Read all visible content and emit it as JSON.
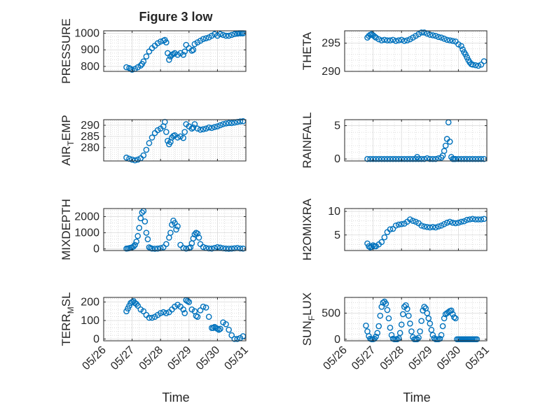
{
  "figure": {
    "title": "Figure 3 low",
    "xlabel": "Time"
  },
  "colors": {
    "marker": "#0072BD",
    "axis": "#262626",
    "grid": "#c9c9c9",
    "background": "#ffffff"
  },
  "chart_data": [
    {
      "id": "pressure",
      "type": "scatter",
      "ylabel": "PRESSURE",
      "ylabel_sub": "",
      "ylim": [
        770,
        1015
      ],
      "yticks": [
        800,
        900,
        1000
      ],
      "xlim": [
        0,
        5
      ],
      "xticks": [
        0,
        1,
        2,
        3,
        4,
        5
      ],
      "xticklabels": [],
      "grid": true,
      "x": [
        0.8,
        0.9,
        0.95,
        1.0,
        1.1,
        1.2,
        1.3,
        1.35,
        1.4,
        1.5,
        1.6,
        1.7,
        1.8,
        1.9,
        2.0,
        2.1,
        2.15,
        2.2,
        2.25,
        2.3,
        2.35,
        2.4,
        2.45,
        2.5,
        2.6,
        2.7,
        2.8,
        2.85,
        2.9,
        3.0,
        3.1,
        3.15,
        3.2,
        3.3,
        3.4,
        3.5,
        3.6,
        3.7,
        3.8,
        3.9,
        4.0,
        4.1,
        4.2,
        4.3,
        4.4,
        4.5,
        4.6,
        4.7,
        4.75,
        4.8,
        4.85,
        4.9
      ],
      "y": [
        795,
        790,
        785,
        780,
        785,
        795,
        805,
        815,
        830,
        860,
        890,
        910,
        925,
        940,
        950,
        955,
        960,
        945,
        880,
        840,
        860,
        870,
        875,
        880,
        870,
        880,
        870,
        890,
        930,
        910,
        895,
        900,
        935,
        945,
        955,
        965,
        970,
        975,
        985,
        995,
        985,
        995,
        990,
        985,
        985,
        990,
        995,
        998,
        1000,
        1000,
        1000,
        1000
      ]
    },
    {
      "id": "theta",
      "type": "scatter",
      "ylabel": "THETA",
      "ylabel_sub": "",
      "ylim": [
        290,
        297.2
      ],
      "yticks": [
        290,
        295
      ],
      "xlim": [
        0,
        5
      ],
      "xticks": [
        0,
        1,
        2,
        3,
        4,
        5
      ],
      "xticklabels": [],
      "grid": true,
      "x": [
        0.8,
        0.85,
        0.9,
        0.95,
        1.0,
        1.05,
        1.1,
        1.2,
        1.3,
        1.4,
        1.5,
        1.6,
        1.7,
        1.8,
        1.9,
        2.0,
        2.1,
        2.2,
        2.3,
        2.4,
        2.5,
        2.6,
        2.7,
        2.8,
        2.9,
        3.0,
        3.1,
        3.2,
        3.3,
        3.4,
        3.5,
        3.6,
        3.7,
        3.8,
        3.9,
        4.0,
        4.1,
        4.15,
        4.2,
        4.25,
        4.3,
        4.35,
        4.4,
        4.45,
        4.5,
        4.6,
        4.7,
        4.8,
        4.9
      ],
      "y": [
        296,
        296.3,
        296.5,
        296.6,
        296.4,
        296.2,
        296.0,
        295.7,
        295.5,
        295.6,
        295.5,
        295.5,
        295.6,
        295.4,
        295.5,
        295.6,
        295.4,
        295.5,
        295.7,
        296.0,
        296.3,
        296.6,
        296.9,
        296.9,
        296.7,
        296.5,
        296.4,
        296.3,
        296.1,
        296.0,
        295.8,
        295.6,
        295.5,
        295.4,
        295.3,
        294.8,
        294.5,
        293.9,
        293.4,
        293.0,
        292.5,
        292.0,
        291.6,
        291.3,
        291.2,
        291.1,
        291.0,
        291.2,
        291.8
      ]
    },
    {
      "id": "air_temp",
      "type": "scatter",
      "ylabel": "AIR",
      "ylabel_sub": "T",
      "ylabel_tail": "EMP",
      "ylim": [
        274,
        292.5
      ],
      "yticks": [
        280,
        285,
        290
      ],
      "xlim": [
        0,
        5
      ],
      "xticks": [
        0,
        1,
        2,
        3,
        4,
        5
      ],
      "xticklabels": [],
      "grid": true,
      "x": [
        0.8,
        0.9,
        1.0,
        1.1,
        1.2,
        1.3,
        1.4,
        1.5,
        1.6,
        1.7,
        1.8,
        1.9,
        2.0,
        2.1,
        2.15,
        2.2,
        2.25,
        2.3,
        2.35,
        2.4,
        2.45,
        2.5,
        2.6,
        2.7,
        2.8,
        2.85,
        2.9,
        3.0,
        3.1,
        3.15,
        3.2,
        3.3,
        3.4,
        3.5,
        3.6,
        3.7,
        3.8,
        3.9,
        4.0,
        4.1,
        4.2,
        4.3,
        4.4,
        4.5,
        4.6,
        4.7,
        4.8,
        4.9
      ],
      "y": [
        275.5,
        275,
        274.6,
        274.3,
        274.6,
        275.2,
        276.5,
        279,
        282,
        284.5,
        286.5,
        287.8,
        288.5,
        289.5,
        291.5,
        287,
        283,
        281.5,
        282.5,
        284.5,
        285.2,
        285.5,
        284.5,
        285,
        284.3,
        287,
        290.5,
        289.5,
        288.5,
        289,
        290.5,
        288.5,
        288,
        288.2,
        288.5,
        289,
        288.8,
        289.2,
        289.5,
        290,
        290.5,
        290.8,
        291,
        291,
        291.2,
        291.5,
        291.7,
        291.8
      ]
    },
    {
      "id": "rainfall",
      "type": "scatter",
      "ylabel": "RAINFALL",
      "ylabel_sub": "",
      "ylim": [
        -0.3,
        5.9
      ],
      "yticks": [
        0,
        5
      ],
      "xlim": [
        0,
        5
      ],
      "xticks": [
        0,
        1,
        2,
        3,
        4,
        5
      ],
      "xticklabels": [],
      "grid": true,
      "x": [
        0.8,
        0.9,
        1.0,
        1.1,
        1.2,
        1.3,
        1.4,
        1.5,
        1.6,
        1.7,
        1.8,
        1.9,
        2.0,
        2.1,
        2.2,
        2.3,
        2.4,
        2.5,
        2.55,
        2.6,
        2.7,
        2.8,
        2.9,
        3.0,
        3.1,
        3.2,
        3.3,
        3.4,
        3.45,
        3.5,
        3.55,
        3.6,
        3.65,
        3.7,
        3.75,
        3.8,
        3.85,
        3.9,
        4.0,
        4.1,
        4.2,
        4.3,
        4.4,
        4.5,
        4.6,
        4.7,
        4.8,
        4.9
      ],
      "y": [
        0,
        0,
        0,
        0,
        0,
        0,
        0,
        0,
        0,
        0,
        0,
        0,
        0,
        0,
        0,
        0,
        0,
        0,
        0.3,
        0,
        0,
        0,
        0.1,
        0,
        0,
        0,
        0.1,
        0.2,
        0.5,
        1.2,
        2,
        3,
        5.5,
        2.6,
        0.3,
        0,
        0,
        0,
        0,
        0,
        0,
        0,
        0,
        0,
        0,
        0,
        0,
        0
      ]
    },
    {
      "id": "mixdepth",
      "type": "scatter",
      "ylabel": "MIXDEPTH",
      "ylabel_sub": "",
      "ylim": [
        -100,
        2500
      ],
      "yticks": [
        0,
        1000,
        2000
      ],
      "xlim": [
        0,
        5
      ],
      "xticks": [
        0,
        1,
        2,
        3,
        4,
        5
      ],
      "xticklabels": [],
      "grid": true,
      "x": [
        0.8,
        0.85,
        0.9,
        0.95,
        1.0,
        1.05,
        1.1,
        1.15,
        1.2,
        1.25,
        1.3,
        1.35,
        1.4,
        1.45,
        1.5,
        1.55,
        1.6,
        1.65,
        1.7,
        1.8,
        1.9,
        2.0,
        2.1,
        2.2,
        2.3,
        2.35,
        2.4,
        2.45,
        2.5,
        2.55,
        2.6,
        2.7,
        2.8,
        2.9,
        3.0,
        3.05,
        3.1,
        3.15,
        3.2,
        3.25,
        3.3,
        3.35,
        3.4,
        3.5,
        3.6,
        3.7,
        3.8,
        3.9,
        4.0,
        4.1,
        4.2,
        4.3,
        4.4,
        4.5,
        4.6,
        4.7,
        4.8,
        4.9
      ],
      "y": [
        20,
        30,
        50,
        70,
        100,
        150,
        250,
        450,
        800,
        1300,
        1900,
        2250,
        2350,
        1700,
        1000,
        600,
        100,
        50,
        20,
        10,
        20,
        50,
        100,
        300,
        700,
        1000,
        1500,
        1750,
        1600,
        1200,
        1400,
        250,
        60,
        20,
        50,
        100,
        350,
        650,
        900,
        1000,
        950,
        700,
        300,
        120,
        60,
        30,
        20,
        60,
        110,
        80,
        40,
        20,
        10,
        20,
        40,
        60,
        30,
        20
      ]
    },
    {
      "id": "h2omixra",
      "type": "scatter",
      "ylabel": "H2OMIXRA",
      "ylabel_sub": "",
      "ylim": [
        1.7,
        10.6
      ],
      "yticks": [
        5,
        10
      ],
      "xlim": [
        0,
        5
      ],
      "xticks": [
        0,
        1,
        2,
        3,
        4,
        5
      ],
      "xticklabels": [],
      "grid": true,
      "x": [
        0.8,
        0.85,
        0.9,
        0.95,
        1.0,
        1.05,
        1.1,
        1.2,
        1.3,
        1.4,
        1.5,
        1.6,
        1.7,
        1.8,
        1.9,
        2.0,
        2.1,
        2.2,
        2.3,
        2.4,
        2.5,
        2.6,
        2.7,
        2.8,
        2.9,
        3.0,
        3.1,
        3.2,
        3.3,
        3.4,
        3.5,
        3.6,
        3.7,
        3.8,
        3.9,
        4.0,
        4.1,
        4.2,
        4.3,
        4.4,
        4.5,
        4.6,
        4.7,
        4.8,
        4.9
      ],
      "y": [
        3.2,
        2.6,
        2.4,
        2.5,
        2.8,
        2.6,
        2.6,
        3.0,
        3.5,
        4.5,
        5.6,
        6.2,
        6.3,
        7.0,
        7.2,
        7.3,
        7.4,
        7.8,
        8.3,
        8.0,
        7.8,
        7.5,
        7.0,
        6.8,
        6.7,
        6.6,
        6.7,
        6.6,
        6.8,
        7.0,
        7.3,
        7.6,
        7.8,
        7.6,
        7.5,
        7.6,
        7.8,
        7.9,
        8.2,
        8.3,
        8.4,
        8.3,
        8.3,
        8.3,
        8.4
      ]
    },
    {
      "id": "terr_msl",
      "type": "scatter",
      "ylabel": "TERR",
      "ylabel_sub": "M",
      "ylabel_tail": "SL",
      "ylim": [
        -10,
        225
      ],
      "yticks": [
        0,
        100,
        200
      ],
      "xlim": [
        0,
        5
      ],
      "xticks": [
        0,
        1,
        2,
        3,
        4,
        5
      ],
      "xticklabels": [
        "05/26",
        "05/27",
        "05/28",
        "05/29",
        "05/30",
        "05/31"
      ],
      "grid": true,
      "x": [
        0.8,
        0.85,
        0.9,
        0.95,
        1.0,
        1.05,
        1.1,
        1.15,
        1.2,
        1.3,
        1.4,
        1.5,
        1.6,
        1.7,
        1.8,
        1.9,
        2.0,
        2.1,
        2.2,
        2.3,
        2.4,
        2.5,
        2.6,
        2.7,
        2.8,
        2.85,
        2.9,
        2.95,
        3.0,
        3.1,
        3.2,
        3.25,
        3.3,
        3.4,
        3.5,
        3.6,
        3.7,
        3.8,
        3.85,
        3.9,
        3.95,
        4.0,
        4.05,
        4.1,
        4.2,
        4.3,
        4.4,
        4.5,
        4.6,
        4.7,
        4.8,
        4.9
      ],
      "y": [
        150,
        165,
        180,
        195,
        200,
        205,
        195,
        190,
        180,
        160,
        150,
        130,
        115,
        115,
        120,
        130,
        140,
        145,
        140,
        145,
        160,
        175,
        185,
        175,
        160,
        140,
        210,
        205,
        200,
        160,
        150,
        125,
        120,
        155,
        175,
        170,
        120,
        60,
        60,
        65,
        60,
        55,
        50,
        55,
        90,
        80,
        50,
        20,
        0,
        0,
        5,
        15
      ]
    },
    {
      "id": "sun_flux",
      "type": "scatter",
      "ylabel": "SUN",
      "ylabel_sub": "F",
      "ylabel_tail": "LUX",
      "ylim": [
        -30,
        800
      ],
      "yticks": [
        0,
        500
      ],
      "xlim": [
        0,
        5
      ],
      "xticks": [
        0,
        1,
        2,
        3,
        4,
        5
      ],
      "xticklabels": [
        "05/26",
        "05/27",
        "05/28",
        "05/29",
        "05/30",
        "05/31"
      ],
      "grid": true,
      "x": [
        0.75,
        0.8,
        0.85,
        0.9,
        0.95,
        1.0,
        1.05,
        1.1,
        1.15,
        1.2,
        1.25,
        1.3,
        1.35,
        1.4,
        1.45,
        1.5,
        1.55,
        1.6,
        1.65,
        1.7,
        1.75,
        1.8,
        1.85,
        1.9,
        1.95,
        2.0,
        2.05,
        2.1,
        2.15,
        2.2,
        2.25,
        2.3,
        2.35,
        2.4,
        2.45,
        2.5,
        2.55,
        2.6,
        2.65,
        2.7,
        2.75,
        2.8,
        2.85,
        2.9,
        2.95,
        3.0,
        3.05,
        3.1,
        3.15,
        3.2,
        3.25,
        3.3,
        3.35,
        3.4,
        3.45,
        3.5,
        3.55,
        3.6,
        3.65,
        3.7,
        3.75,
        3.8,
        3.85,
        3.9,
        3.95,
        4.0,
        4.05,
        4.1,
        4.15,
        4.2,
        4.25,
        4.3,
        4.35,
        4.4,
        4.45,
        4.5,
        4.55,
        4.6,
        4.65
      ],
      "y": [
        260,
        150,
        60,
        10,
        0,
        0,
        10,
        50,
        120,
        250,
        450,
        620,
        700,
        720,
        680,
        560,
        400,
        220,
        80,
        10,
        0,
        0,
        0,
        20,
        120,
        280,
        480,
        620,
        650,
        580,
        450,
        300,
        150,
        40,
        0,
        0,
        0,
        30,
        150,
        350,
        550,
        620,
        590,
        500,
        400,
        300,
        180,
        80,
        20,
        0,
        0,
        0,
        10,
        80,
        250,
        400,
        480,
        500,
        520,
        540,
        550,
        480,
        420,
        400,
        0,
        0,
        0,
        0,
        0,
        0,
        0,
        0,
        0,
        0,
        0,
        0,
        0,
        0,
        0
      ]
    }
  ]
}
